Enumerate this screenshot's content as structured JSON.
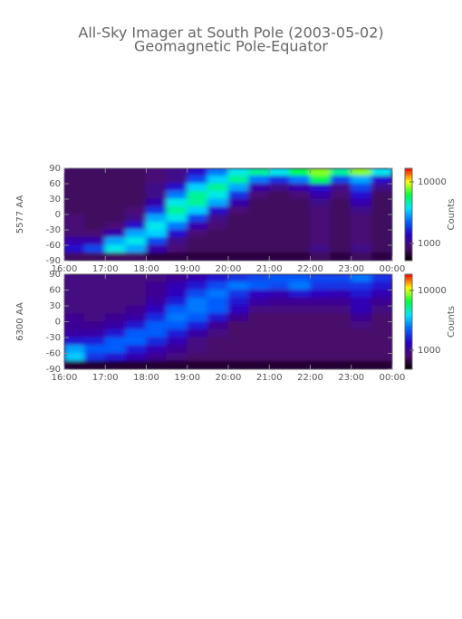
{
  "title": "All-Sky Imager at South Pole (2003-05-02)",
  "subtitle": "Geomagnetic Pole-Equator",
  "chart_data": [
    {
      "type": "heatmap",
      "ylabel": "5577 AA",
      "clabel": "Counts",
      "x": [
        16.25,
        16.75,
        17.25,
        17.75,
        18.25,
        18.75,
        19.25,
        19.75,
        20.25,
        20.75,
        21.25,
        21.75,
        22.25,
        22.75,
        23.25,
        23.75
      ],
      "y": [
        82.5,
        67.5,
        52.5,
        37.5,
        22.5,
        7.5,
        -7.5,
        -22.5,
        -37.5,
        -52.5,
        -67.5,
        -82.5
      ],
      "values": [
        [
          800,
          800,
          800,
          800,
          900,
          1000,
          1500,
          2500,
          4000,
          5000,
          4000,
          6000,
          8000,
          5000,
          8000,
          4000
        ],
        [
          800,
          800,
          800,
          800,
          900,
          1000,
          2000,
          3500,
          5000,
          2500,
          1800,
          2500,
          6000,
          2000,
          3000,
          1500
        ],
        [
          800,
          800,
          800,
          800,
          1000,
          1500,
          3500,
          5000,
          3000,
          1200,
          1000,
          1200,
          1500,
          1000,
          2000,
          1000
        ],
        [
          800,
          800,
          800,
          800,
          1000,
          2500,
          5000,
          4000,
          1800,
          900,
          800,
          900,
          1200,
          900,
          1500,
          800
        ],
        [
          800,
          800,
          800,
          800,
          1200,
          4000,
          5000,
          3000,
          1200,
          800,
          800,
          800,
          1000,
          800,
          1200,
          800
        ],
        [
          800,
          800,
          800,
          900,
          1800,
          5000,
          3500,
          1500,
          900,
          800,
          800,
          800,
          900,
          800,
          1000,
          800
        ],
        [
          900,
          800,
          800,
          1000,
          3000,
          4000,
          2000,
          1000,
          800,
          800,
          800,
          800,
          900,
          800,
          900,
          800
        ],
        [
          900,
          800,
          900,
          1500,
          4000,
          2500,
          1200,
          900,
          800,
          800,
          800,
          800,
          900,
          800,
          900,
          800
        ],
        [
          900,
          900,
          1200,
          3000,
          3500,
          1500,
          900,
          800,
          800,
          800,
          800,
          800,
          900,
          800,
          900,
          800
        ],
        [
          1200,
          1200,
          3000,
          4000,
          2000,
          1000,
          800,
          800,
          800,
          800,
          800,
          800,
          900,
          800,
          900,
          800
        ],
        [
          1500,
          2000,
          4000,
          3000,
          1200,
          900,
          800,
          800,
          800,
          800,
          800,
          800,
          1000,
          800,
          1000,
          800
        ],
        [
          800,
          800,
          800,
          800,
          700,
          700,
          700,
          700,
          700,
          700,
          700,
          700,
          800,
          700,
          800,
          700
        ]
      ],
      "xlim": [
        16,
        24
      ],
      "xticks": [
        {
          "value": 16,
          "label": "16:00"
        },
        {
          "value": 17,
          "label": "17:00"
        },
        {
          "value": 18,
          "label": "18:00"
        },
        {
          "value": 19,
          "label": "19:00"
        },
        {
          "value": 20,
          "label": "20:00"
        },
        {
          "value": 21,
          "label": "21:00"
        },
        {
          "value": 22,
          "label": "22:00"
        },
        {
          "value": 23,
          "label": "23:00"
        },
        {
          "value": 24,
          "label": "00:00"
        }
      ],
      "ylim": [
        -90,
        90
      ],
      "yticks": [
        -90,
        -60,
        -30,
        0,
        30,
        60,
        90
      ],
      "clim": [
        525,
        16600
      ],
      "cticks": [
        1000,
        10000
      ],
      "log_color": true,
      "colormap": [
        "#000000",
        "#4b0a6e",
        "#2a00c8",
        "#0064ff",
        "#00e6ff",
        "#00ff40",
        "#ffff00",
        "#ff0000"
      ]
    },
    {
      "type": "heatmap",
      "ylabel": "6300 AA",
      "clabel": "Counts",
      "x": [
        16.25,
        16.75,
        17.25,
        17.75,
        18.25,
        18.75,
        19.25,
        19.75,
        20.25,
        20.75,
        21.25,
        21.75,
        22.25,
        22.75,
        23.25,
        23.75
      ],
      "y": [
        82.5,
        67.5,
        52.5,
        37.5,
        22.5,
        7.5,
        -7.5,
        -22.5,
        -37.5,
        -52.5,
        -67.5,
        -82.5
      ],
      "values": [
        [
          900,
          900,
          900,
          900,
          900,
          1000,
          1200,
          1500,
          1800,
          2000,
          2200,
          2200,
          2000,
          2000,
          2500,
          1800
        ],
        [
          900,
          900,
          900,
          900,
          1000,
          1200,
          1500,
          2000,
          2500,
          2200,
          2000,
          2500,
          1800,
          1800,
          1800,
          1500
        ],
        [
          900,
          900,
          900,
          900,
          1000,
          1300,
          2000,
          2500,
          1800,
          1300,
          1200,
          1500,
          1300,
          1200,
          1500,
          1200
        ],
        [
          900,
          900,
          900,
          900,
          1100,
          1600,
          2500,
          2200,
          1500,
          1100,
          1000,
          1000,
          1000,
          1000,
          1200,
          1000
        ],
        [
          900,
          900,
          900,
          1000,
          1300,
          2200,
          2500,
          2200,
          1300,
          900,
          900,
          900,
          900,
          900,
          1200,
          900
        ],
        [
          1000,
          900,
          1000,
          1100,
          1700,
          2500,
          2200,
          1500,
          1000,
          800,
          800,
          800,
          800,
          800,
          1000,
          800
        ],
        [
          1000,
          1000,
          1100,
          1500,
          2200,
          2200,
          1600,
          1000,
          800,
          800,
          800,
          800,
          800,
          800,
          900,
          800
        ],
        [
          1100,
          1100,
          1500,
          2200,
          2200,
          1600,
          1100,
          900,
          800,
          800,
          800,
          800,
          800,
          800,
          800,
          800
        ],
        [
          1500,
          1600,
          2200,
          2300,
          1700,
          1200,
          900,
          800,
          800,
          800,
          800,
          800,
          800,
          800,
          800,
          800
        ],
        [
          3000,
          2200,
          2200,
          1600,
          1200,
          1000,
          900,
          800,
          800,
          800,
          800,
          800,
          800,
          800,
          800,
          800
        ],
        [
          3500,
          1800,
          1500,
          1200,
          1000,
          900,
          800,
          800,
          800,
          800,
          800,
          800,
          800,
          800,
          800,
          800
        ],
        [
          600,
          600,
          600,
          600,
          600,
          600,
          600,
          600,
          600,
          600,
          600,
          600,
          600,
          600,
          600,
          600
        ]
      ],
      "xlim": [
        16,
        24
      ],
      "xticks": [
        {
          "value": 16,
          "label": "16:00"
        },
        {
          "value": 17,
          "label": "17:00"
        },
        {
          "value": 18,
          "label": "18:00"
        },
        {
          "value": 19,
          "label": "19:00"
        },
        {
          "value": 20,
          "label": "20:00"
        },
        {
          "value": 21,
          "label": "21:00"
        },
        {
          "value": 22,
          "label": "22:00"
        },
        {
          "value": 23,
          "label": "23:00"
        },
        {
          "value": 24,
          "label": "00:00"
        }
      ],
      "ylim": [
        -90,
        90
      ],
      "yticks": [
        -90,
        -60,
        -30,
        0,
        30,
        60,
        90
      ],
      "clim": [
        480,
        18700
      ],
      "cticks": [
        1000,
        10000
      ],
      "log_color": true,
      "colormap": [
        "#000000",
        "#4b0a6e",
        "#2a00c8",
        "#0064ff",
        "#00e6ff",
        "#00ff40",
        "#ffff00",
        "#ff0000"
      ]
    }
  ]
}
